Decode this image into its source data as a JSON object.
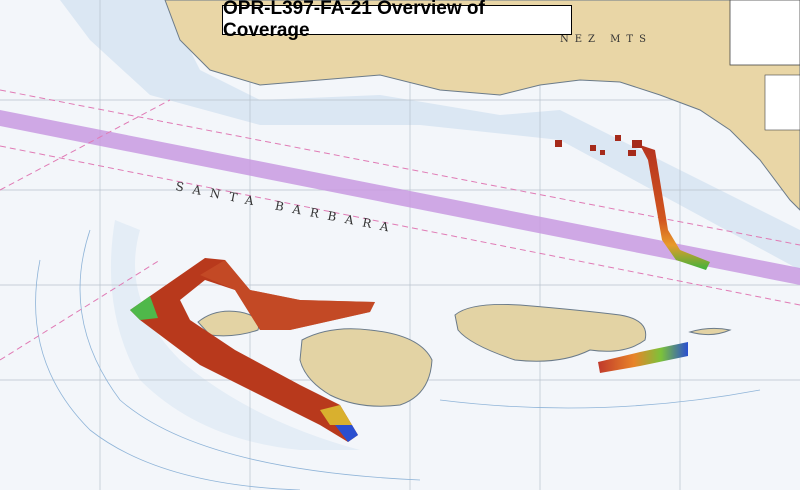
{
  "title": "OPR-L397-FA-21 Overview of Coverage",
  "map_labels": {
    "channel": "SANTA BARBARA",
    "mountains": "NEZ MTS"
  }
}
